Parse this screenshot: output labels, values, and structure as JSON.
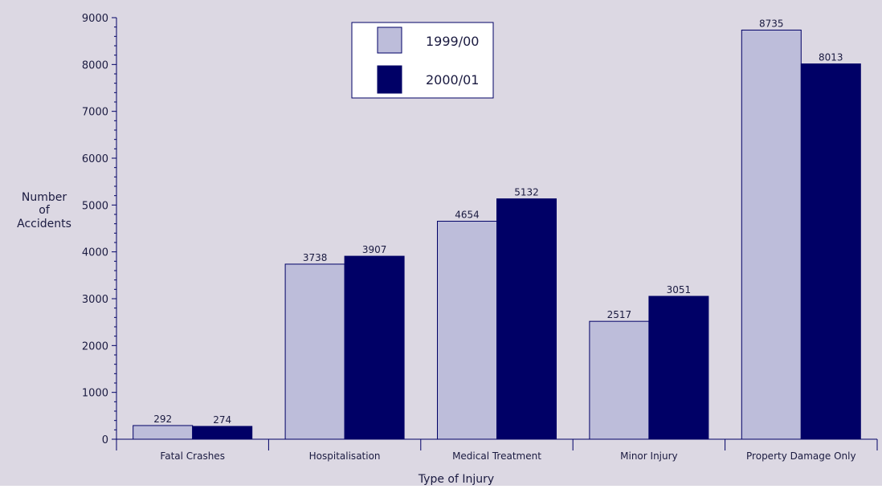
{
  "chart_data": {
    "type": "bar",
    "title": "",
    "xlabel": "Type of Injury",
    "ylabel_lines": [
      "Number",
      "of",
      "Accidents"
    ],
    "categories": [
      "Fatal Crashes",
      "Hospitalisation",
      "Medical Treatment",
      "Minor Injury",
      "Property Damage Only"
    ],
    "series": [
      {
        "name": "1999/00",
        "values": [
          292,
          3738,
          4654,
          2517,
          8735
        ]
      },
      {
        "name": "2000/01",
        "values": [
          274,
          3907,
          5132,
          3051,
          8013
        ]
      }
    ],
    "ylim": [
      0,
      9000
    ],
    "yticks": [
      0,
      1000,
      2000,
      3000,
      4000,
      5000,
      6000,
      7000,
      8000,
      9000
    ],
    "grid": false,
    "legend_position": "top-center",
    "colors": {
      "background": "#dcd8e3",
      "series": [
        "#bdbdda",
        "#000066"
      ],
      "axis": "#000066",
      "text": "#1a1a40"
    }
  }
}
